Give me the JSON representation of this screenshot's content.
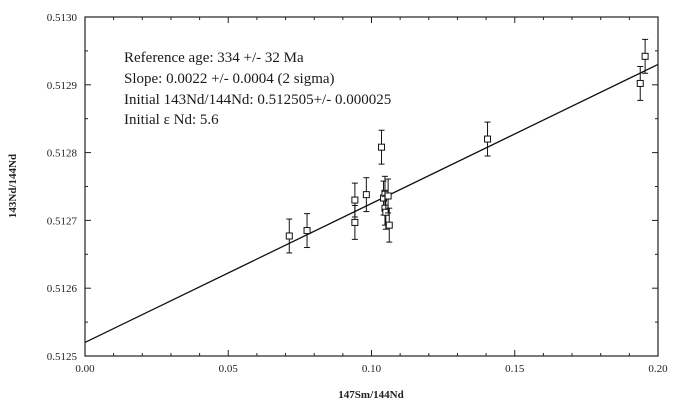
{
  "chart_data": {
    "type": "scatter",
    "title": "",
    "xlabel": "147Sm/144Nd",
    "ylabel": "143Nd/144Nd",
    "xlim": [
      0.0,
      0.2
    ],
    "ylim": [
      0.5125,
      0.513
    ],
    "x_ticks": [
      0.0,
      0.05,
      0.1,
      0.15,
      0.2
    ],
    "x_tick_labels": [
      "0.00",
      "0.05",
      "0.10",
      "0.15",
      "0.20"
    ],
    "y_ticks": [
      0.5125,
      0.5126,
      0.5127,
      0.5128,
      0.5129,
      0.513
    ],
    "y_tick_labels": [
      "0.5125",
      "0.5126",
      "0.5127",
      "0.5128",
      "0.5129",
      "0.5130"
    ],
    "grid": false,
    "annotations": [
      "Reference age: 334 +/- 32 Ma",
      "Slope: 0.0022 +/- 0.0004 (2 sigma)",
      "Initial 143Nd/144Nd: 0.512505+/- 0.000025",
      "Initial ε Nd: 5.6"
    ],
    "fit_line": {
      "x": [
        0.0,
        0.2
      ],
      "y": [
        0.51252,
        0.51293
      ]
    },
    "points": [
      {
        "x": 0.0713,
        "y": 0.512677,
        "err": 2.5e-05
      },
      {
        "x": 0.0775,
        "y": 0.512685,
        "err": 2.5e-05
      },
      {
        "x": 0.0942,
        "y": 0.51273,
        "err": 2.5e-05
      },
      {
        "x": 0.0942,
        "y": 0.512697,
        "err": 2.5e-05
      },
      {
        "x": 0.0982,
        "y": 0.512738,
        "err": 2.5e-05
      },
      {
        "x": 0.1035,
        "y": 0.512808,
        "err": 2.5e-05
      },
      {
        "x": 0.1042,
        "y": 0.512733,
        "err": 2.5e-05
      },
      {
        "x": 0.1047,
        "y": 0.51274,
        "err": 2.5e-05
      },
      {
        "x": 0.1047,
        "y": 0.512718,
        "err": 2.5e-05
      },
      {
        "x": 0.105,
        "y": 0.512712,
        "err": 2.5e-05
      },
      {
        "x": 0.1058,
        "y": 0.512736,
        "err": 2.5e-05
      },
      {
        "x": 0.1062,
        "y": 0.512693,
        "err": 2.5e-05
      },
      {
        "x": 0.1405,
        "y": 0.51282,
        "err": 2.5e-05
      },
      {
        "x": 0.1938,
        "y": 0.512902,
        "err": 2.5e-05
      },
      {
        "x": 0.1955,
        "y": 0.512942,
        "err": 2.5e-05
      }
    ]
  }
}
